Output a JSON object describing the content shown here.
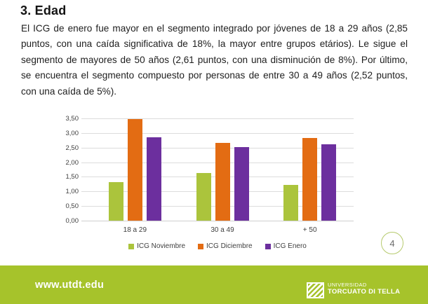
{
  "slide": {
    "title": "3. Edad",
    "paragraph": "El ICG de enero fue mayor en  el segmento integrado por jóvenes de 18 a 29 años (2,85 puntos, con una caída significativa de 18%, la mayor entre grupos etários). Le sigue el segmento de mayores de 50 años (2,61 puntos, con una disminución de 8%). Por último, se encuentra el segmento compuesto por personas de entre 30 a 49 años (2,52 puntos, con una caída de 5%).",
    "page_number": "4"
  },
  "chart_data": {
    "type": "bar",
    "categories": [
      "18 a 29",
      "30 a 49",
      "+ 50"
    ],
    "series": [
      {
        "name": "ICG Noviembre",
        "color": "#abc43c",
        "values": [
          1.31,
          1.63,
          1.22
        ]
      },
      {
        "name": "ICG Diciembre",
        "color": "#e36c13",
        "values": [
          3.47,
          2.65,
          2.84
        ]
      },
      {
        "name": "ICG Enero",
        "color": "#6c2f9e",
        "values": [
          2.85,
          2.52,
          2.61
        ]
      }
    ],
    "title": "",
    "xlabel": "",
    "ylabel": "",
    "ylim": [
      0,
      3.5
    ],
    "ytick_step": 0.5,
    "ytick_labels": [
      "0,00",
      "0,50",
      "1,00",
      "1,50",
      "2,00",
      "2,50",
      "3,00",
      "3,50"
    ],
    "grid": true,
    "legend_position": "bottom"
  },
  "footer": {
    "url": "www.utdt.edu",
    "logo_line1": "UNIVERSIDAD",
    "logo_line2": "TORCUATO DI TELLA",
    "background": "#a6c32b"
  }
}
